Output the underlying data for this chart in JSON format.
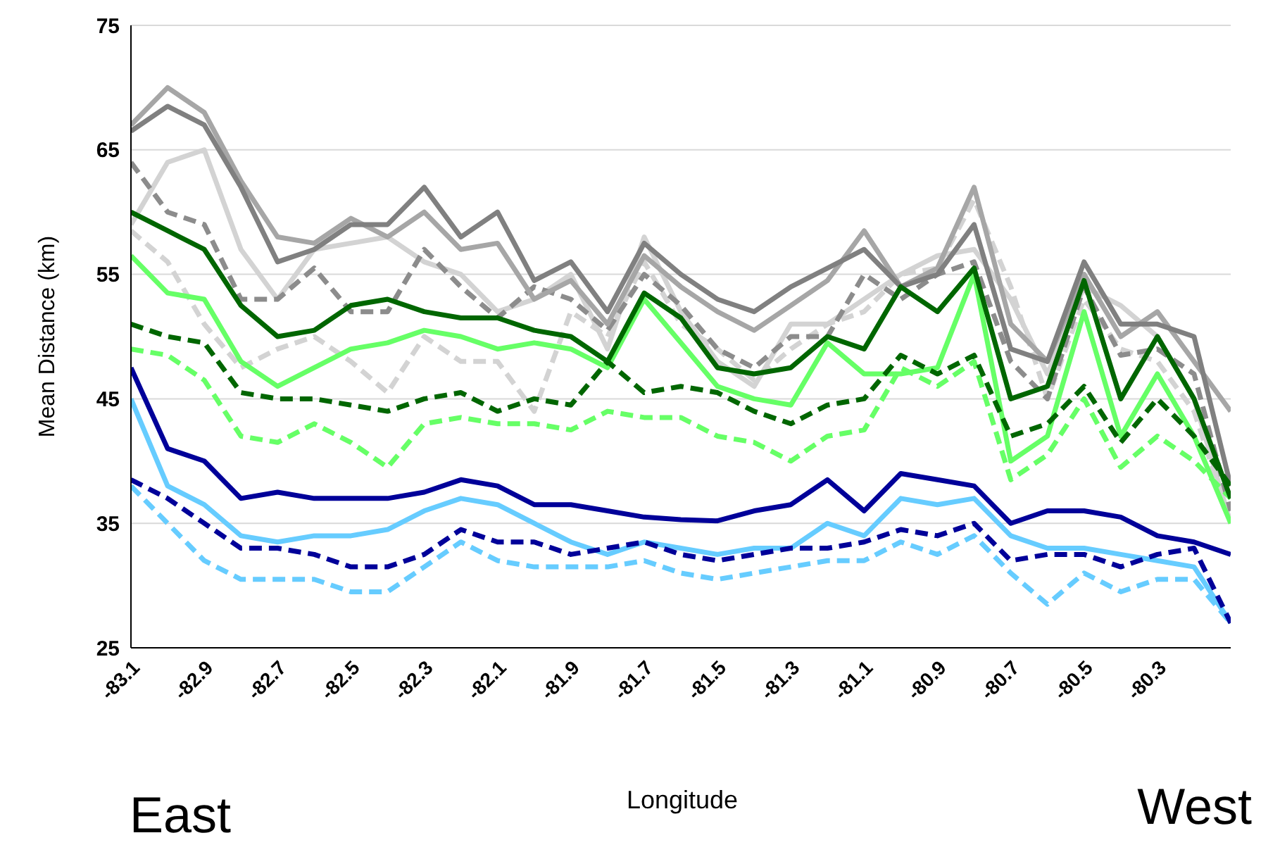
{
  "chart_data": {
    "type": "line",
    "xlabel": "Longitude",
    "ylabel": "Mean Distance (km)",
    "annotations": [
      "East",
      "West"
    ],
    "x": [
      -83.1,
      -83.0,
      -82.9,
      -82.8,
      -82.7,
      -82.6,
      -82.5,
      -82.4,
      -82.3,
      -82.2,
      -82.1,
      -82.0,
      -81.9,
      -81.8,
      -81.7,
      -81.6,
      -81.5,
      -81.4,
      -81.3,
      -81.2,
      -81.1,
      -81.0,
      -80.9,
      -80.8,
      -80.7,
      -80.6,
      -80.5,
      -80.4,
      -80.3,
      -80.2,
      -80.1
    ],
    "xlim": [
      -83.1,
      -80.1
    ],
    "xticks": [
      -83.1,
      -82.9,
      -82.7,
      -82.5,
      -82.3,
      -82.1,
      -81.9,
      -81.7,
      -81.5,
      -81.3,
      -81.1,
      -80.9,
      -80.7,
      -80.5,
      -80.3
    ],
    "ylim": [
      25,
      75
    ],
    "yticks": [
      25,
      35,
      45,
      55,
      65,
      75
    ],
    "grid": "y",
    "marker": "none",
    "series": [
      {
        "color": "#d3d3d3",
        "line_style": "dashed",
        "values": [
          58.5,
          56,
          51,
          47.5,
          49,
          50,
          48,
          45.5,
          50,
          48,
          48,
          44,
          52,
          50,
          56,
          51,
          49,
          46.5,
          49,
          51,
          52,
          55,
          55.5,
          61,
          54,
          45,
          53,
          49,
          48,
          44,
          35
        ]
      },
      {
        "color": "#d3d3d3",
        "line_style": "solid",
        "values": [
          59,
          64,
          65,
          57,
          53,
          57,
          57.5,
          58,
          56,
          55,
          52,
          53,
          55,
          49,
          58,
          52,
          48,
          46,
          51,
          51,
          53,
          55,
          56.5,
          57,
          53,
          47,
          54,
          52.5,
          50,
          45,
          35
        ]
      },
      {
        "color": "#8c8c8c",
        "line_style": "dashed",
        "values": [
          64,
          60,
          59,
          53,
          53,
          55.5,
          52,
          52,
          57,
          54,
          51.5,
          54,
          53,
          50.5,
          55,
          52.5,
          49,
          47.5,
          50,
          50,
          55,
          53,
          55,
          56,
          48,
          45,
          54,
          48.5,
          49,
          47,
          36
        ]
      },
      {
        "color": "#a6a6a6",
        "line_style": "solid",
        "values": [
          67,
          70,
          68,
          62.5,
          58,
          57.5,
          59.5,
          58,
          60,
          57,
          57.5,
          53,
          54.5,
          51,
          56.5,
          54,
          52,
          50.5,
          52.5,
          54.5,
          58.5,
          54,
          55.5,
          62,
          51,
          48,
          55,
          50,
          52,
          48,
          44
        ]
      },
      {
        "color": "#808080",
        "line_style": "solid",
        "values": [
          66.5,
          68.5,
          67,
          62,
          56,
          57,
          59,
          59,
          62,
          58,
          60,
          54.5,
          56,
          52,
          57.5,
          55,
          53,
          52,
          54,
          55.5,
          57,
          54,
          55,
          59,
          49,
          48,
          56,
          51,
          51,
          50,
          38
        ]
      },
      {
        "color": "#66ff66",
        "line_style": "dashed",
        "values": [
          49,
          48.5,
          46.5,
          42,
          41.5,
          43,
          41.5,
          39.5,
          43,
          43.5,
          43,
          43,
          42.5,
          44,
          43.5,
          43.5,
          42,
          41.5,
          40,
          42,
          42.5,
          47.5,
          46,
          48,
          38.5,
          40.5,
          45,
          39.5,
          42,
          40,
          37
        ]
      },
      {
        "color": "#66ff66",
        "line_style": "solid",
        "values": [
          56.5,
          53.5,
          53,
          48,
          46,
          47.5,
          49,
          49.5,
          50.5,
          50,
          49,
          49.5,
          49,
          47.5,
          53,
          49.5,
          46,
          45,
          44.5,
          49.5,
          47,
          47,
          47.5,
          55,
          40,
          42,
          52,
          42,
          47,
          42,
          35
        ]
      },
      {
        "color": "#006600",
        "line_style": "dashed",
        "values": [
          51,
          50,
          49.5,
          45.5,
          45,
          45,
          44.5,
          44,
          45,
          45.5,
          44,
          45,
          44.5,
          48,
          45.5,
          46,
          45.5,
          44,
          43,
          44.5,
          45,
          48.5,
          47,
          48.5,
          42,
          43,
          46,
          41.5,
          45,
          42,
          38
        ]
      },
      {
        "color": "#006600",
        "line_style": "solid",
        "values": [
          60,
          58.5,
          57,
          52.5,
          50,
          50.5,
          52.5,
          53,
          52,
          51.5,
          51.5,
          50.5,
          50,
          48,
          53.5,
          51.5,
          47.5,
          47,
          47.5,
          50,
          49,
          54,
          52,
          55.5,
          45,
          46,
          54.5,
          45,
          50,
          45,
          37
        ]
      },
      {
        "color": "#66ccff",
        "line_style": "dashed",
        "values": [
          38,
          35,
          32,
          30.5,
          30.5,
          30.5,
          29.5,
          29.5,
          31.5,
          33.5,
          32,
          31.5,
          31.5,
          31.5,
          32,
          31,
          30.5,
          31,
          31.5,
          32,
          32,
          33.5,
          32.5,
          34,
          31,
          28.5,
          31,
          29.5,
          30.5,
          30.5,
          27
        ]
      },
      {
        "color": "#66ccff",
        "line_style": "solid",
        "values": [
          45,
          38,
          36.5,
          34,
          33.5,
          34,
          34,
          34.5,
          36,
          37,
          36.5,
          35,
          33.5,
          32.5,
          33.5,
          33,
          32.5,
          33,
          33,
          35,
          34,
          37,
          36.5,
          37,
          34,
          33,
          33,
          32.5,
          32,
          31.5,
          27
        ]
      },
      {
        "color": "#000099",
        "line_style": "dashed",
        "values": [
          38.5,
          37,
          35,
          33,
          33,
          32.5,
          31.5,
          31.5,
          32.5,
          34.5,
          33.5,
          33.5,
          32.5,
          33,
          33.5,
          32.5,
          32,
          32.5,
          33,
          33,
          33.5,
          34.5,
          34,
          35,
          32,
          32.5,
          32.5,
          31.5,
          32.5,
          33,
          27
        ]
      },
      {
        "color": "#000099",
        "line_style": "solid",
        "values": [
          47.5,
          41,
          40,
          37,
          37.5,
          37,
          37,
          37,
          37.5,
          38.5,
          38,
          36.5,
          36.5,
          36,
          35.5,
          35.3,
          35.2,
          36,
          36.5,
          38.5,
          36,
          39,
          38.5,
          38,
          35,
          36,
          36,
          35.5,
          34,
          33.5,
          32.5
        ]
      }
    ]
  }
}
